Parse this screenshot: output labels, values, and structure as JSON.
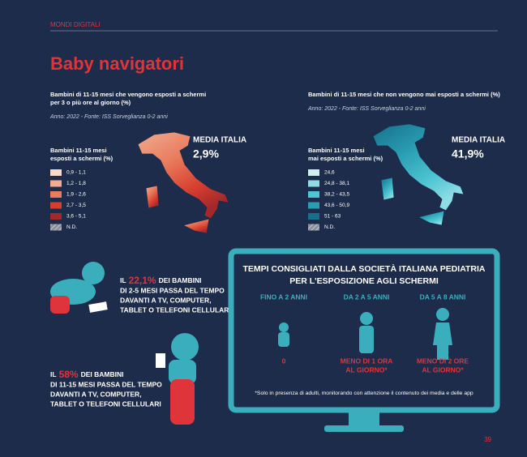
{
  "header": {
    "section": "MONDI DIGITALI",
    "title": "Baby navigatori",
    "page_number": "39"
  },
  "maps": [
    {
      "subtitle": [
        "Bambini di 11-15 mesi che vengono esposti a schermi",
        "per 3 o più ore al giorno (%)"
      ],
      "source": "Anno: 2022 - Fonte: ISS Sorveglianza 0-2 anni",
      "legend_title": [
        "Bambini 11-15 mesi",
        "esposti a schermi (%)"
      ],
      "legend": [
        {
          "label": "0,9 - 1,1",
          "color": "#f8d9ca"
        },
        {
          "label": "1,2 - 1,8",
          "color": "#f2ab90"
        },
        {
          "label": "1,9 - 2,6",
          "color": "#e97c5d"
        },
        {
          "label": "2,7 - 3,5",
          "color": "#d63e2e"
        },
        {
          "label": "3,6 - 5,1",
          "color": "#a3282a"
        }
      ],
      "nd_label": "N.D.",
      "average_label": "MEDIA ITALIA",
      "average": "2,9%"
    },
    {
      "subtitle": [
        "Bambini di 11-15 mesi che non vengono mai esposti a schermi (%)"
      ],
      "source": "Anno: 2022 - Fonte: ISS Sorveglianza 0-2 anni",
      "legend_title": [
        "Bambini 11-15 mesi",
        "mai esposti a schermi (%)"
      ],
      "legend": [
        {
          "label": "24,6",
          "color": "#cdeef2"
        },
        {
          "label": "24,8 - 38,1",
          "color": "#8edce6"
        },
        {
          "label": "38,2 - 43,5",
          "color": "#4ec5d3"
        },
        {
          "label": "43,6 - 50,9",
          "color": "#2a9db2"
        },
        {
          "label": "51 - 63",
          "color": "#176f8b"
        }
      ],
      "nd_label": "N.D.",
      "average_label": "MEDIA ITALIA",
      "average": "41,9%"
    }
  ],
  "facts": [
    {
      "prefix": "IL",
      "highlight": "22,1%",
      "lines": [
        "DEI BAMBINI",
        "DI 2-5 MESI PASSA DEL TEMPO",
        "DAVANTI A TV, COMPUTER,",
        "TABLET O TELEFONI CELLULARI"
      ]
    },
    {
      "prefix": "IL",
      "highlight": "58%",
      "lines": [
        "DEI BAMBINI",
        "DI 11-15 MESI PASSA DEL TEMPO",
        "DAVANTI A TV, COMPUTER,",
        "TABLET O TELEFONI CELLULARI"
      ]
    }
  ],
  "monitor": {
    "title": [
      "TEMPI CONSIGLIATI DALLA SOCIETÀ ITALIANA PEDIATRIA",
      "PER L'ESPOSIZIONE AGLI SCHERMI"
    ],
    "columns": [
      {
        "age": "FINO A 2 ANNI",
        "time": [
          "0"
        ]
      },
      {
        "age": "DA 2 A 5 ANNI",
        "time": [
          "MENO DI 1 ORA",
          "AL GIORNO*"
        ]
      },
      {
        "age": "DA 5 A 8 ANNI",
        "time": [
          "MENO DI 2 ORE",
          "AL GIORNO*"
        ]
      }
    ],
    "note": "*Solo in presenza di adulti, monitorando con attenzione il contenuto dei media e delle app"
  }
}
